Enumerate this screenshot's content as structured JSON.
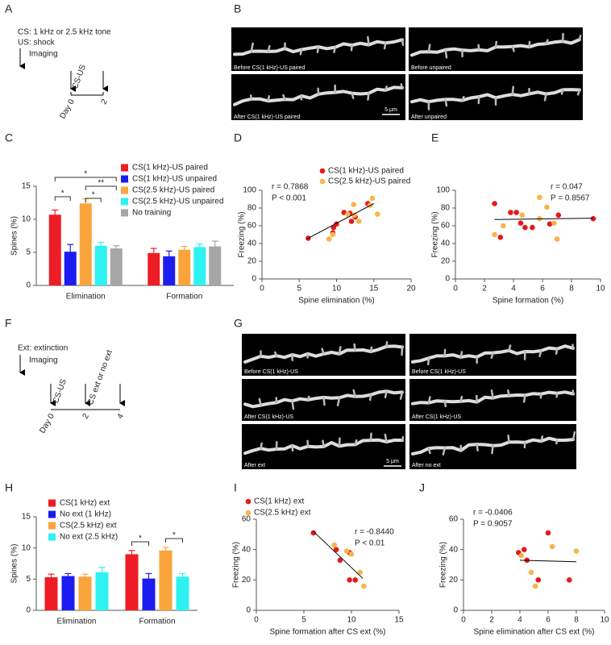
{
  "panels": [
    {
      "label": "A",
      "texts": [
        "CS: 1 kHz or 2.5 kHz tone",
        "US: shock",
        "Imaging",
        "CS-US",
        "Day 0",
        "2"
      ]
    },
    {
      "label": "B",
      "image_labels": [
        "Before CS(1 kHz)-US paired",
        "Before unpaired",
        "After CS(1 kHz)-US paired",
        "After unpaired"
      ],
      "scale_bar": "5 μm"
    },
    {
      "label": "F",
      "texts": [
        "Ext: extinction",
        "Imaging",
        "CS-US",
        "CS ext or no ext",
        "Day 0",
        "2",
        "4"
      ]
    },
    {
      "label": "G",
      "image_labels": [
        "Before CS(1 kHz)-US",
        "Before CS(1 kHz)-US",
        "After CS(1 kHz)-US",
        "After CS(1 kHz)-US",
        "After ext",
        "After no ext"
      ],
      "scale_bar": "5 μm"
    }
  ],
  "chart_data": [
    {
      "type": "bar",
      "panel": "C",
      "y_label": "Spines (%)",
      "categories": [
        "Elimination",
        "Formation"
      ],
      "series": [
        {
          "name": "CS(1 kHz)-US paired",
          "color": "#ee1c25",
          "values": [
            10.7,
            4.9
          ],
          "errors": [
            0.7,
            0.7
          ]
        },
        {
          "name": "CS(1 kHz)-US unpaired",
          "color": "#1c1cf0",
          "values": [
            5.1,
            4.4
          ],
          "errors": [
            1.1,
            0.8
          ]
        },
        {
          "name": "CS(2.5 kHz)-US paired",
          "color": "#f9a53b",
          "values": [
            12.4,
            5.4
          ],
          "errors": [
            0.7,
            0.5
          ]
        },
        {
          "name": "CS(2.5 kHz)-US unpaired",
          "color": "#2ef2f2",
          "values": [
            6.0,
            5.8
          ],
          "errors": [
            0.5,
            0.5
          ]
        },
        {
          "name": "No training",
          "color": "#a6a6a6",
          "values": [
            5.6,
            5.9
          ],
          "errors": [
            0.4,
            0.8
          ]
        }
      ],
      "annotations": [
        "*",
        "*",
        "**",
        "*"
      ],
      "ylim": [
        0,
        15
      ],
      "yticks": [
        0,
        5,
        10,
        15
      ]
    },
    {
      "type": "scatter",
      "panel": "D",
      "x_label": "Spine elimination (%)",
      "y_label": "Freezing (%)",
      "legend": true,
      "series": [
        {
          "name": "CS(1 kHz)-US paired",
          "color": "#e31a1c",
          "x": [
            6.2,
            9.5,
            9.6,
            10,
            11,
            11.8,
            12,
            12.5,
            14.2
          ],
          "values": [
            46,
            52,
            58,
            62,
            75,
            74,
            65,
            70,
            85
          ]
        },
        {
          "name": "CS(2.5 kHz)-US paired",
          "color": "#f7b54a",
          "x": [
            9,
            9.5,
            11.5,
            12.3,
            12.4,
            13,
            14.5,
            14.8,
            15.5
          ],
          "values": [
            45,
            50,
            73,
            84,
            72,
            65,
            83,
            91,
            73
          ]
        }
      ],
      "fit": {
        "x": [
          6,
          15
        ],
        "y": [
          45,
          85
        ]
      },
      "stats": [
        "r = 0.7868",
        "P < 0.001"
      ],
      "xlim": [
        0,
        20
      ],
      "xticks": [
        0,
        5,
        10,
        15,
        20
      ],
      "ylim": [
        0,
        100
      ],
      "yticks": [
        0,
        20,
        40,
        60,
        80,
        100
      ]
    },
    {
      "type": "scatter",
      "panel": "E",
      "x_label": "Spine formation (%)",
      "y_label": "Freezing (%)",
      "legend": false,
      "series": [
        {
          "color": "#e31a1c",
          "x": [
            2.7,
            3.1,
            3.8,
            4.2,
            4.5,
            4.8,
            5.3,
            6.5,
            7.1,
            9.5
          ],
          "values": [
            85,
            47,
            75,
            75,
            63,
            58,
            58,
            62,
            72,
            68
          ]
        },
        {
          "color": "#f7b54a",
          "x": [
            2.7,
            3.3,
            4.6,
            5.8,
            5.8,
            6.3,
            6.8,
            7
          ],
          "values": [
            50,
            60,
            72,
            68,
            92,
            81,
            63,
            45
          ]
        }
      ],
      "fit": {
        "x": [
          2.7,
          9.5
        ],
        "y": [
          67,
          68.5
        ]
      },
      "stats": [
        "r = 0.047",
        "P = 0.8567"
      ],
      "xlim": [
        0,
        10
      ],
      "xticks": [
        0,
        2,
        4,
        6,
        8,
        10
      ],
      "ylim": [
        0,
        100
      ],
      "yticks": [
        0,
        20,
        40,
        60,
        80,
        100
      ]
    },
    {
      "type": "bar",
      "panel": "H",
      "y_label": "Spines (%)",
      "categories": [
        "Elimination",
        "Formation"
      ],
      "series": [
        {
          "name": "CS(1 kHz) ext",
          "color": "#ee1c25",
          "values": [
            5.3,
            9.0
          ],
          "errors": [
            0.5,
            0.6
          ]
        },
        {
          "name": "No ext (1 kHz)",
          "color": "#1c1cf0",
          "values": [
            5.5,
            5.1
          ],
          "errors": [
            0.4,
            0.8
          ]
        },
        {
          "name": "CS(2.5 kHz) ext",
          "color": "#f9a53b",
          "values": [
            5.4,
            9.6
          ],
          "errors": [
            0.4,
            0.5
          ]
        },
        {
          "name": "No ext (2.5 kHz)",
          "color": "#2ef2f2",
          "values": [
            6.1,
            5.4
          ],
          "errors": [
            0.8,
            0.5
          ]
        }
      ],
      "annotations": [
        "*",
        "*"
      ],
      "ylim": [
        0,
        15
      ],
      "yticks": [
        0,
        5,
        10,
        15
      ]
    },
    {
      "type": "scatter",
      "panel": "I",
      "x_label": "Spine formation after CS ext (%)",
      "y_label": "Freezing (%)",
      "legend": true,
      "series": [
        {
          "name": "CS(1 kHz) ext",
          "color": "#e31a1c",
          "x": [
            6,
            8.4,
            8.8,
            9.8,
            9.8,
            10.4
          ],
          "values": [
            51,
            40,
            33,
            38,
            20,
            20
          ]
        },
        {
          "name": "CS(2.5 kHz) ext",
          "color": "#f7b54a",
          "x": [
            8.2,
            9.5,
            10,
            10.9,
            11.3
          ],
          "values": [
            43,
            39,
            37,
            25,
            16
          ]
        }
      ],
      "fit": {
        "x": [
          6,
          11.2
        ],
        "y": [
          52,
          21
        ]
      },
      "stats": [
        "r = -0.8440",
        "P < 0.01"
      ],
      "xlim": [
        0,
        15
      ],
      "xticks": [
        0,
        5,
        10,
        15
      ],
      "ylim": [
        0,
        60
      ],
      "yticks": [
        0,
        20,
        40,
        60
      ]
    },
    {
      "type": "scatter",
      "panel": "J",
      "x_label": "Spine elimination after CS ext (%)",
      "y_label": "Freezing (%)",
      "legend": false,
      "series": [
        {
          "color": "#e31a1c",
          "x": [
            3.9,
            4.3,
            4.5,
            5.3,
            6,
            7.5
          ],
          "values": [
            38,
            40,
            33,
            20,
            51,
            20
          ]
        },
        {
          "color": "#f7b54a",
          "x": [
            4.1,
            4.8,
            5.1,
            6.3,
            8
          ],
          "values": [
            36,
            25,
            16,
            42,
            39
          ]
        }
      ],
      "fit": {
        "x": [
          4,
          8
        ],
        "y": [
          33,
          32
        ]
      },
      "stats": [
        "r = -0.0406",
        "P = 0.9057"
      ],
      "xlim": [
        0,
        10
      ],
      "xticks": [
        0,
        2,
        4,
        6,
        8,
        10
      ],
      "ylim": [
        0,
        60
      ],
      "yticks": [
        0,
        20,
        40,
        60
      ]
    }
  ]
}
